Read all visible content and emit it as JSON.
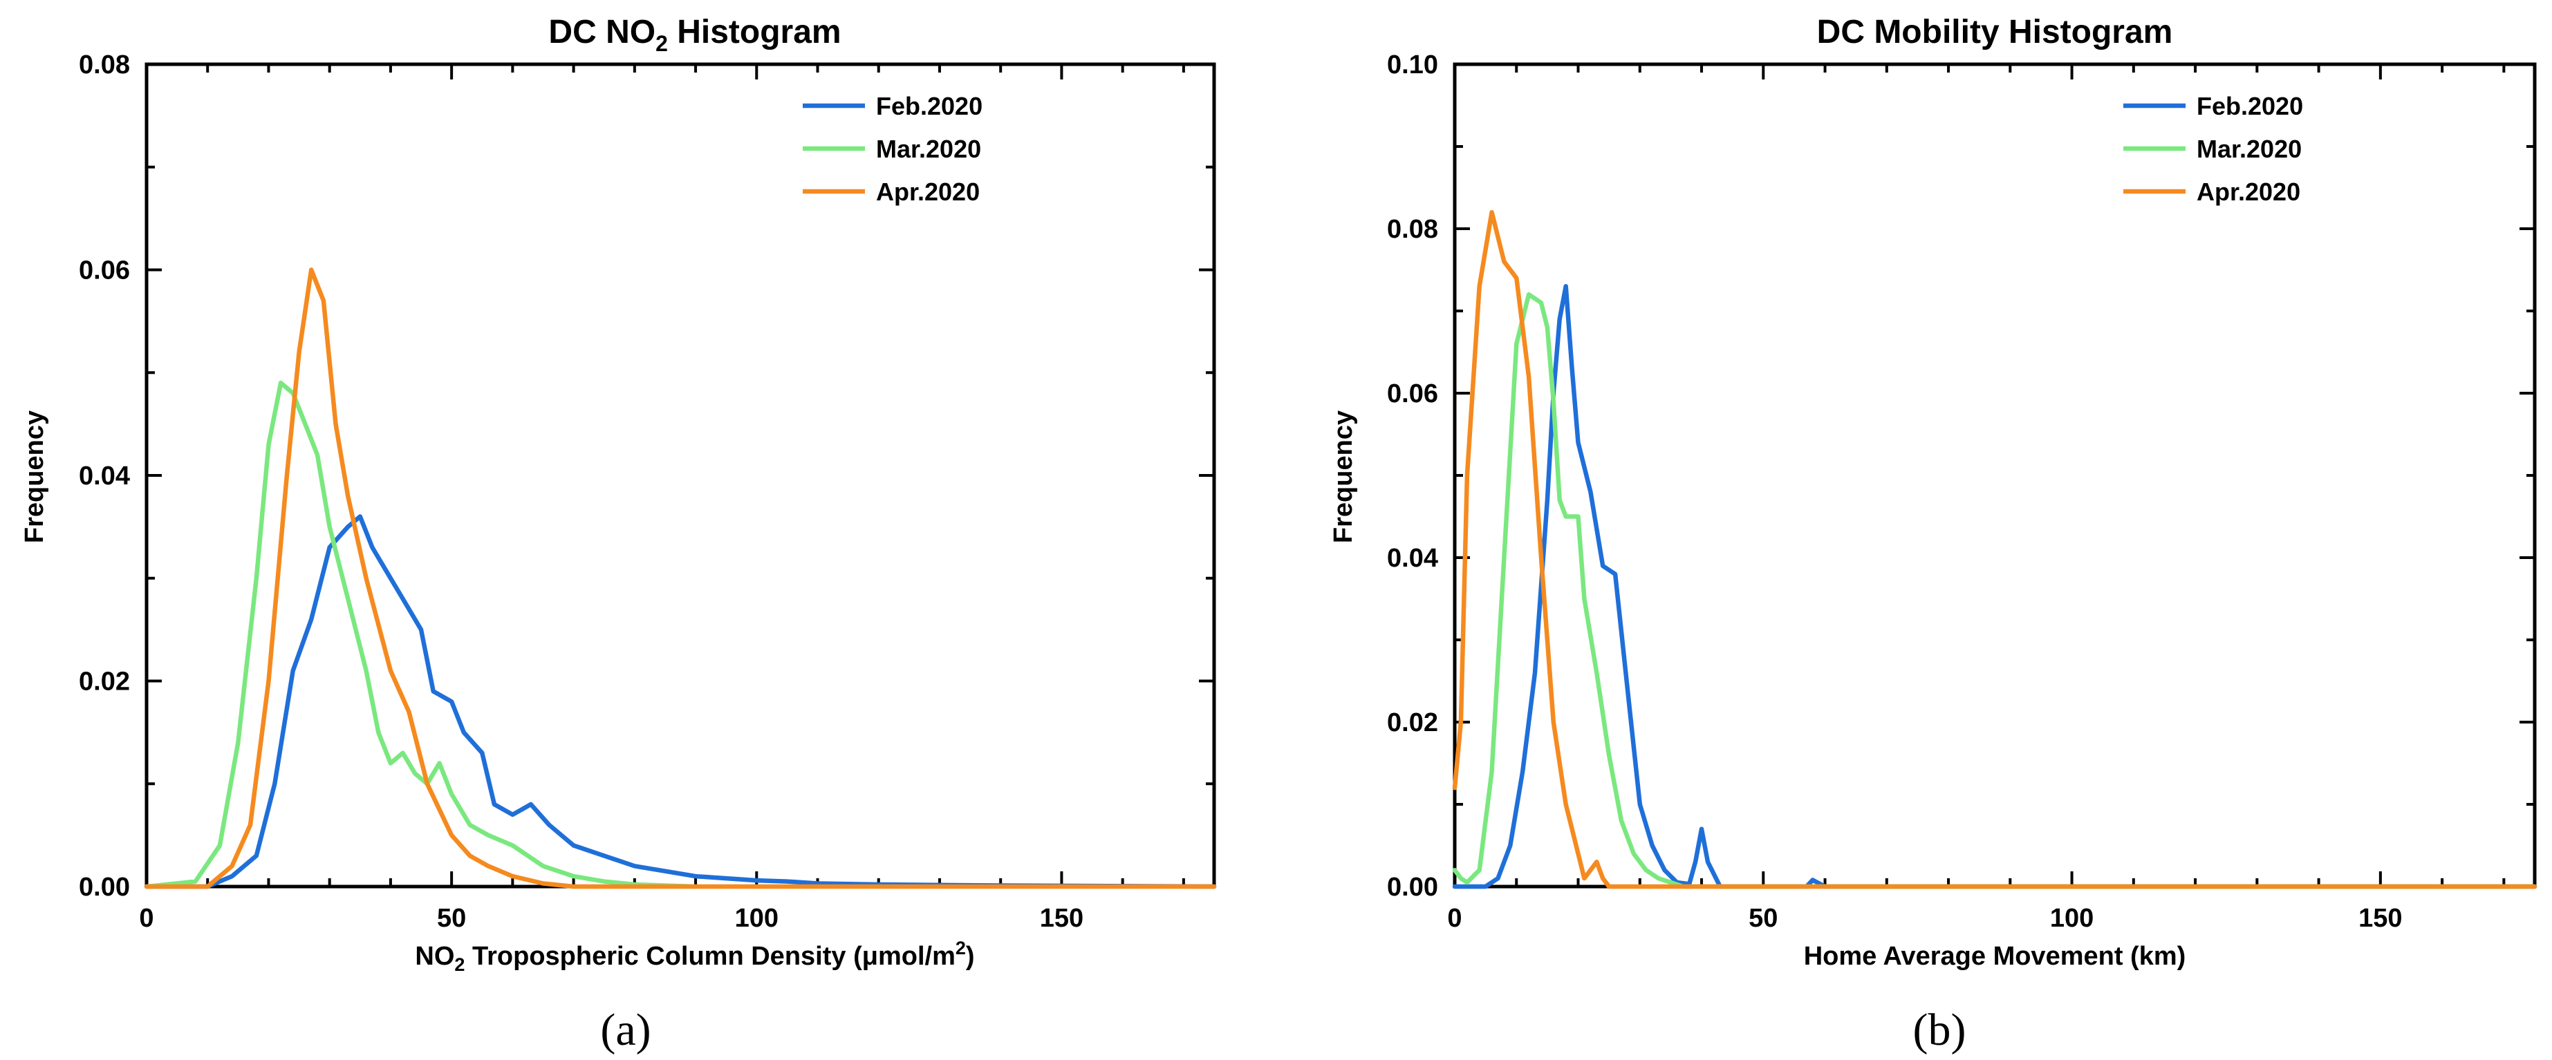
{
  "chart_data": [
    {
      "type": "line",
      "title": "DC NO",
      "title_sub": "2",
      "title_rest": " Histogram",
      "xlabel_pre": "NO",
      "xlabel_sub": "2",
      "xlabel_post": " Tropospheric Column Density (μmol/m",
      "xlabel_sup": "2",
      "xlabel_end": ")",
      "ylabel": "Frequency",
      "xlim": [
        0,
        175
      ],
      "ylim": [
        0,
        0.08
      ],
      "xticks": [
        0,
        50,
        100,
        150
      ],
      "yticks": [
        "0.00",
        "0.02",
        "0.04",
        "0.06",
        "0.08"
      ],
      "panel_label": "(a)",
      "legend": [
        "Feb.2020",
        "Mar.2020",
        "Apr.2020"
      ],
      "series": [
        {
          "name": "Feb.2020",
          "color": "#1f6fd9",
          "x": [
            0,
            10,
            14,
            18,
            21,
            24,
            27,
            30,
            33,
            35,
            37,
            40,
            42,
            45,
            47,
            50,
            52,
            55,
            57,
            60,
            63,
            66,
            70,
            75,
            80,
            85,
            90,
            95,
            100,
            105,
            110,
            120,
            140,
            175
          ],
          "y": [
            0,
            0,
            0.001,
            0.003,
            0.01,
            0.021,
            0.026,
            0.033,
            0.035,
            0.036,
            0.033,
            0.03,
            0.028,
            0.025,
            0.019,
            0.018,
            0.015,
            0.013,
            0.008,
            0.007,
            0.008,
            0.006,
            0.004,
            0.003,
            0.002,
            0.0015,
            0.001,
            0.0008,
            0.0006,
            0.0005,
            0.0003,
            0.0002,
            0.0001,
            0
          ]
        },
        {
          "name": "Mar.2020",
          "color": "#7ae87f",
          "x": [
            0,
            8,
            12,
            15,
            18,
            20,
            22,
            24,
            26,
            28,
            30,
            33,
            36,
            38,
            40,
            42,
            44,
            46,
            48,
            50,
            53,
            56,
            60,
            65,
            70,
            75,
            80,
            90
          ],
          "y": [
            0,
            0.0005,
            0.004,
            0.014,
            0.03,
            0.043,
            0.049,
            0.048,
            0.045,
            0.042,
            0.035,
            0.028,
            0.021,
            0.015,
            0.012,
            0.013,
            0.011,
            0.01,
            0.012,
            0.009,
            0.006,
            0.005,
            0.004,
            0.002,
            0.001,
            0.0005,
            0.0002,
            0
          ]
        },
        {
          "name": "Apr.2020",
          "color": "#f58a1f",
          "x": [
            0,
            10,
            14,
            17,
            20,
            23,
            25,
            27,
            29,
            31,
            33,
            36,
            40,
            43,
            46,
            50,
            53,
            56,
            60,
            65,
            70,
            175
          ],
          "y": [
            0,
            0,
            0.002,
            0.006,
            0.02,
            0.04,
            0.052,
            0.06,
            0.057,
            0.045,
            0.038,
            0.03,
            0.021,
            0.017,
            0.01,
            0.005,
            0.003,
            0.002,
            0.001,
            0.0003,
            0,
            0
          ]
        }
      ]
    },
    {
      "type": "line",
      "title": "DC Mobility Histogram",
      "xlabel": "Home Average Movement (km)",
      "ylabel": "Frequency",
      "xlim": [
        0,
        175
      ],
      "ylim": [
        0,
        0.1
      ],
      "xticks": [
        0,
        50,
        100,
        150
      ],
      "yticks": [
        "0.00",
        "0.02",
        "0.04",
        "0.06",
        "0.08",
        "0.10"
      ],
      "panel_label": "(b)",
      "legend": [
        "Feb.2020",
        "Mar.2020",
        "Apr.2020"
      ],
      "series": [
        {
          "name": "Feb.2020",
          "color": "#1f6fd9",
          "x": [
            0,
            5,
            7,
            9,
            11,
            13,
            15,
            16,
            17,
            18,
            19,
            20,
            22,
            24,
            26,
            28,
            30,
            32,
            34,
            36,
            38,
            39,
            40,
            41,
            43,
            50,
            57,
            58,
            60,
            65,
            100,
            175
          ],
          "y": [
            0,
            0,
            0.001,
            0.005,
            0.014,
            0.026,
            0.047,
            0.06,
            0.069,
            0.073,
            0.063,
            0.054,
            0.048,
            0.039,
            0.038,
            0.024,
            0.01,
            0.005,
            0.002,
            0.0005,
            0.0003,
            0.003,
            0.007,
            0.003,
            0,
            0,
            0,
            0.0008,
            0,
            0,
            0,
            0
          ]
        },
        {
          "name": "Mar.2020",
          "color": "#7ae87f",
          "x": [
            0,
            1,
            2,
            4,
            6,
            8,
            10,
            12,
            14,
            15,
            16,
            17,
            18,
            20,
            21,
            23,
            25,
            27,
            29,
            31,
            33,
            35,
            37,
            40,
            50,
            175
          ],
          "y": [
            0.002,
            0.001,
            0.0005,
            0.002,
            0.014,
            0.04,
            0.066,
            0.072,
            0.071,
            0.068,
            0.059,
            0.047,
            0.045,
            0.045,
            0.035,
            0.026,
            0.016,
            0.008,
            0.004,
            0.002,
            0.001,
            0.0005,
            0,
            0,
            0,
            0
          ]
        },
        {
          "name": "Apr.2020",
          "color": "#f58a1f",
          "x": [
            0,
            1,
            2,
            4,
            6,
            8,
            10,
            12,
            14,
            16,
            18,
            20,
            21,
            22,
            23,
            24,
            25,
            175
          ],
          "y": [
            0.012,
            0.02,
            0.05,
            0.073,
            0.082,
            0.076,
            0.074,
            0.062,
            0.04,
            0.02,
            0.01,
            0.004,
            0.001,
            0.002,
            0.003,
            0.001,
            0,
            0
          ]
        }
      ]
    }
  ]
}
